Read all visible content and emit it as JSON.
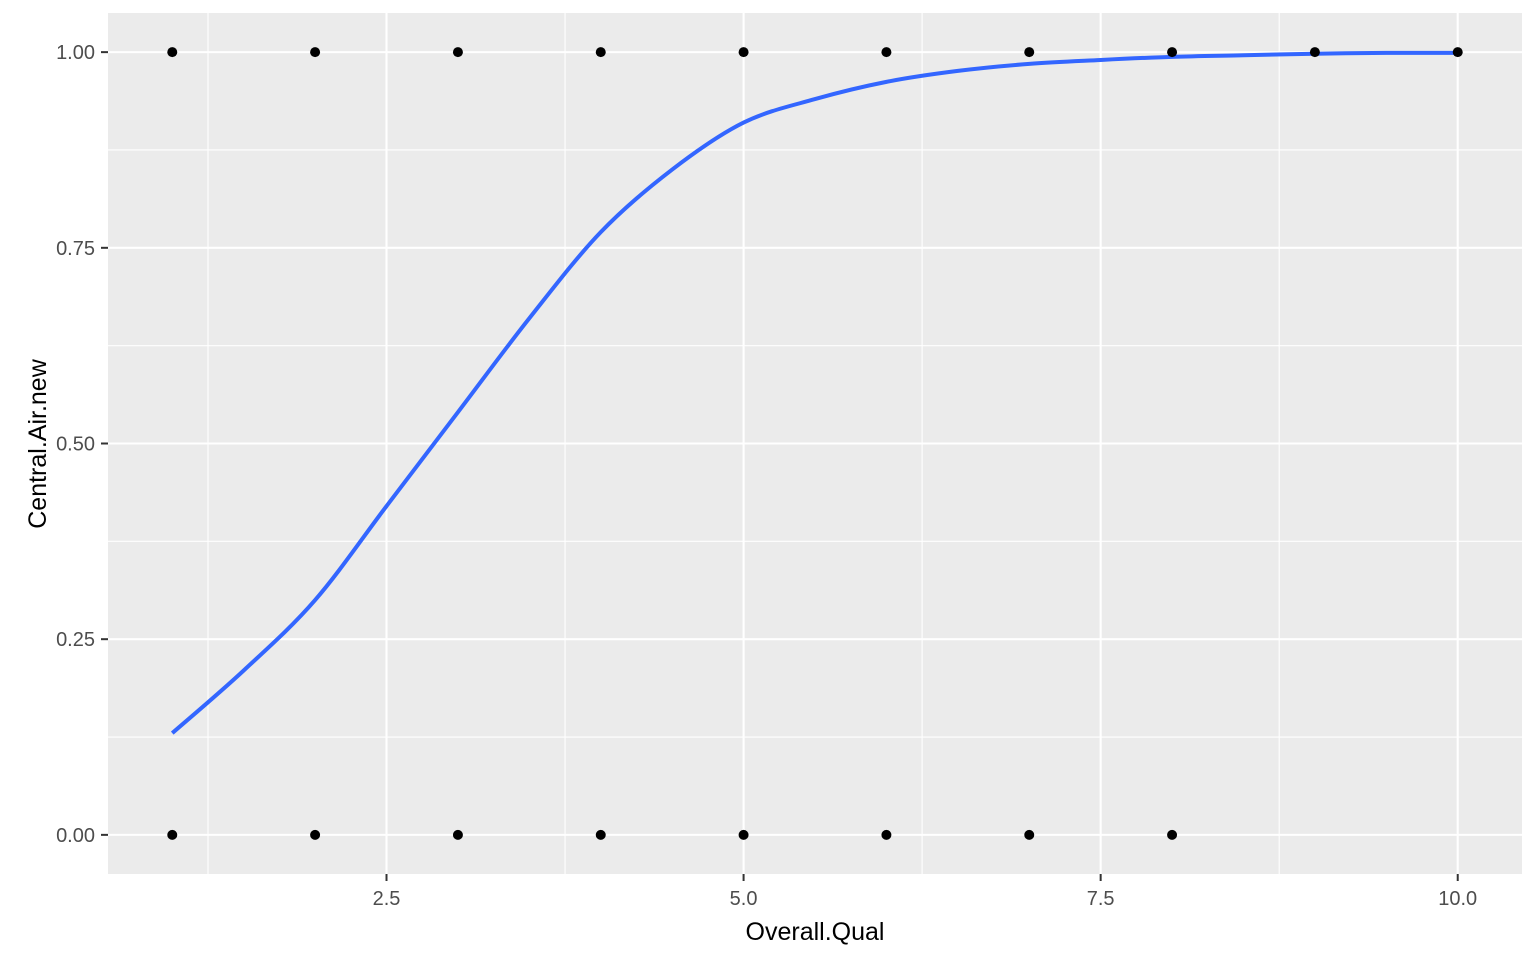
{
  "chart_data": {
    "type": "scatter",
    "title": "",
    "xlabel": "Overall.Qual",
    "ylabel": "Central.Air.new",
    "xlim": [
      0.55,
      10.45
    ],
    "ylim": [
      -0.05,
      1.05
    ],
    "x_ticks": [
      2.5,
      5.0,
      7.5,
      10.0
    ],
    "x_tick_labels": [
      "2.5",
      "5.0",
      "7.5",
      "10.0"
    ],
    "y_ticks": [
      0.0,
      0.25,
      0.5,
      0.75,
      1.0
    ],
    "y_tick_labels": [
      "0.00",
      "0.25",
      "0.50",
      "0.75",
      "1.00"
    ],
    "grid": true,
    "legend": "none",
    "colors": {
      "panel_background": "#ebebeb",
      "grid": "#ffffff",
      "points": "#000000",
      "fit_line": "#3366ff"
    },
    "series": [
      {
        "type": "scatter",
        "points": [
          {
            "x": 1,
            "y": 1
          },
          {
            "x": 2,
            "y": 1
          },
          {
            "x": 3,
            "y": 1
          },
          {
            "x": 4,
            "y": 1
          },
          {
            "x": 5,
            "y": 1
          },
          {
            "x": 6,
            "y": 1
          },
          {
            "x": 7,
            "y": 1
          },
          {
            "x": 8,
            "y": 1
          },
          {
            "x": 9,
            "y": 1
          },
          {
            "x": 10,
            "y": 1
          },
          {
            "x": 1,
            "y": 0
          },
          {
            "x": 2,
            "y": 0
          },
          {
            "x": 3,
            "y": 0
          },
          {
            "x": 4,
            "y": 0
          },
          {
            "x": 5,
            "y": 0
          },
          {
            "x": 6,
            "y": 0
          },
          {
            "x": 7,
            "y": 0
          },
          {
            "x": 8,
            "y": 0
          }
        ]
      },
      {
        "type": "line",
        "x": [
          1.0,
          1.5,
          2.0,
          2.5,
          3.0,
          3.5,
          4.0,
          4.5,
          5.0,
          5.5,
          6.0,
          6.5,
          7.0,
          7.5,
          8.0,
          8.5,
          9.0,
          9.5,
          10.0
        ],
        "y": [
          0.13,
          0.21,
          0.3,
          0.42,
          0.54,
          0.66,
          0.77,
          0.85,
          0.91,
          0.94,
          0.962,
          0.976,
          0.985,
          0.99,
          0.994,
          0.996,
          0.998,
          0.999,
          0.999
        ]
      }
    ]
  }
}
